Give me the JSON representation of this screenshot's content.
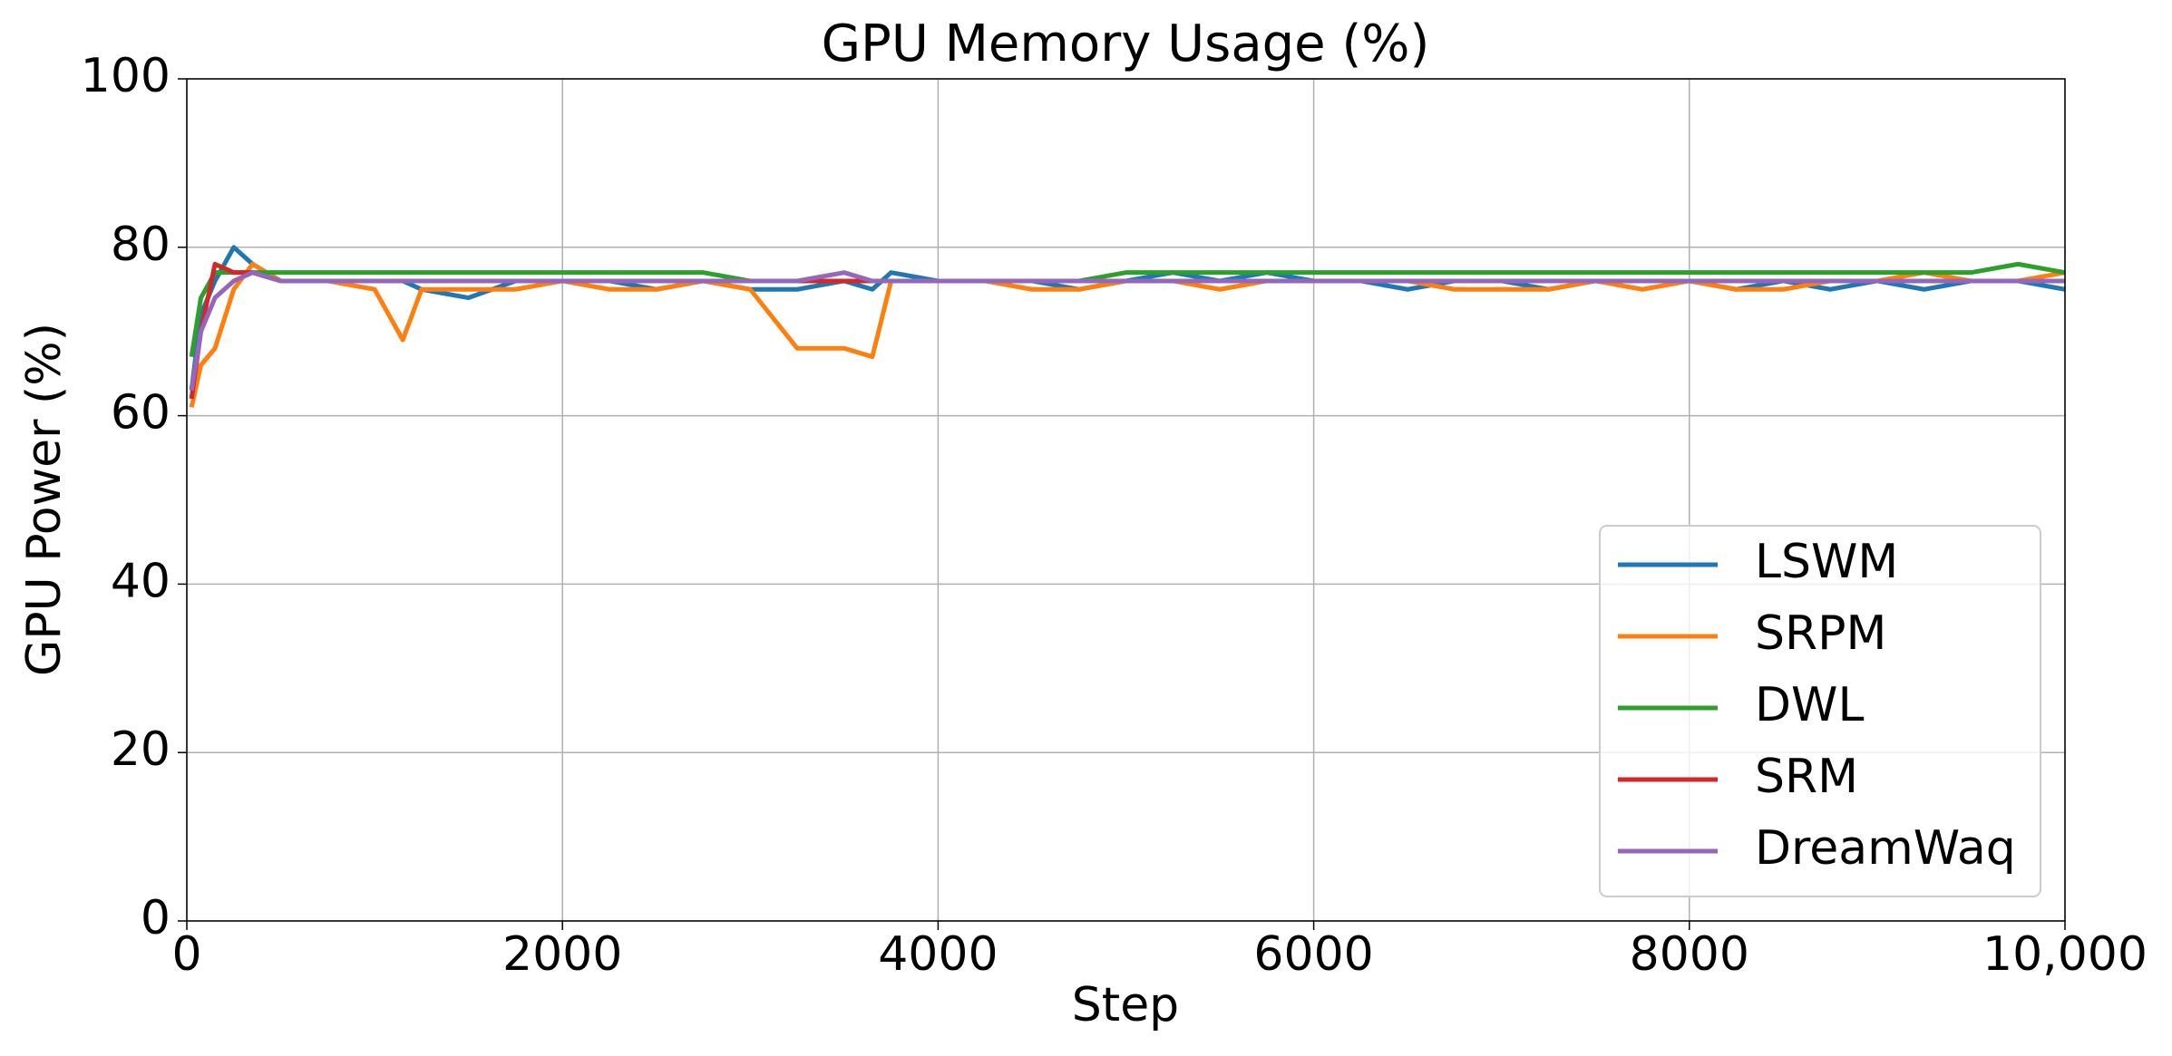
{
  "chart_data": {
    "type": "line",
    "title": "GPU Memory Usage (%)",
    "x_label": "Step",
    "y_label": "GPU Power (%)",
    "x": [
      25,
      75,
      150,
      250,
      350,
      500,
      750,
      1000,
      1150,
      1250,
      1500,
      1750,
      2000,
      2250,
      2500,
      2750,
      3000,
      3250,
      3500,
      3650,
      3750,
      4000,
      4250,
      4500,
      4750,
      5000,
      5250,
      5500,
      5750,
      6000,
      6250,
      6500,
      6750,
      7000,
      7250,
      7500,
      7750,
      8000,
      8250,
      8500,
      8750,
      9000,
      9250,
      9500,
      9750,
      10000
    ],
    "series": [
      {
        "name": "LSWM",
        "color": "#1f77b4",
        "values": [
          63,
          72,
          76,
          80,
          78,
          76,
          76,
          76,
          76,
          75,
          74,
          76,
          76,
          76,
          75,
          76,
          75,
          75,
          76,
          75,
          77,
          76,
          76,
          76,
          75,
          76,
          77,
          76,
          77,
          76,
          76,
          75,
          76,
          76,
          75,
          76,
          76,
          76,
          75,
          76,
          75,
          76,
          75,
          76,
          76,
          75
        ]
      },
      {
        "name": "SRPM",
        "color": "#ff7f0e",
        "values": [
          61,
          66,
          68,
          75,
          78,
          76,
          76,
          75,
          69,
          75,
          75,
          75,
          76,
          75,
          75,
          76,
          75,
          68,
          68,
          67,
          76,
          76,
          76,
          75,
          75,
          76,
          76,
          75,
          76,
          76,
          76,
          76,
          75,
          75,
          75,
          76,
          75,
          76,
          75,
          75,
          76,
          76,
          77,
          76,
          76,
          77
        ]
      },
      {
        "name": "DWL",
        "color": "#2ca02c",
        "values": [
          67,
          74,
          77,
          77,
          77,
          77,
          77,
          77,
          77,
          77,
          77,
          77,
          77,
          77,
          77,
          77,
          76,
          76,
          76,
          76,
          76,
          76,
          76,
          76,
          76,
          77,
          77,
          77,
          77,
          77,
          77,
          77,
          77,
          77,
          77,
          77,
          77,
          77,
          77,
          77,
          77,
          77,
          77,
          77,
          78,
          77
        ]
      },
      {
        "name": "SRM",
        "color": "#d62728",
        "values": [
          62,
          70,
          78,
          77,
          77,
          76,
          76,
          76,
          76,
          76,
          76,
          76,
          76,
          76,
          76,
          76,
          76,
          76,
          76,
          76,
          76,
          76,
          76,
          76,
          76,
          76,
          76,
          76,
          76,
          76,
          76,
          76,
          76,
          76,
          76,
          76,
          76,
          76,
          76,
          76,
          76,
          76,
          76,
          76,
          76,
          76
        ]
      },
      {
        "name": "DreamWaq",
        "color": "#9467bd",
        "values": [
          63,
          70,
          74,
          76,
          77,
          76,
          76,
          76,
          76,
          76,
          76,
          76,
          76,
          76,
          76,
          76,
          76,
          76,
          77,
          76,
          76,
          76,
          76,
          76,
          76,
          76,
          76,
          76,
          76,
          76,
          76,
          76,
          76,
          76,
          76,
          76,
          76,
          76,
          76,
          76,
          76,
          76,
          76,
          76,
          76,
          76
        ]
      }
    ],
    "xlim": [
      0,
      10000
    ],
    "xticks": [
      0,
      2000,
      4000,
      6000,
      8000,
      {
        "value": 10000,
        "label": "10,000"
      }
    ],
    "ylim": [
      0,
      100
    ],
    "yticks": [
      0,
      20,
      40,
      60,
      80,
      100
    ],
    "grid": true,
    "legend": "lower right"
  }
}
